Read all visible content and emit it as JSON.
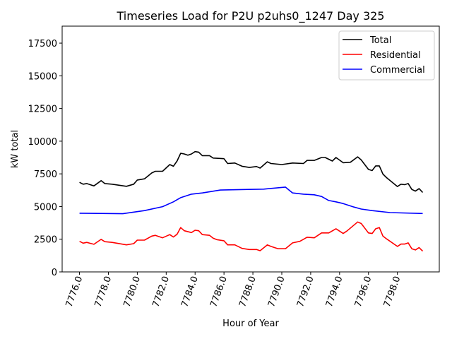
{
  "chart_data": {
    "type": "line",
    "title": "Timeseries Load for P2U p2uhs0_1247  Day 325",
    "xlabel": "Hour of Year",
    "ylabel": "kW total",
    "xlim": [
      7774.8,
      7800.9
    ],
    "ylim": [
      0,
      18800
    ],
    "xticks": [
      7776,
      7778,
      7780,
      7782,
      7784,
      7786,
      7788,
      7790,
      7792,
      7794,
      7796,
      7798
    ],
    "xtick_labels": [
      "7776.0",
      "7778.0",
      "7780.0",
      "7782.0",
      "7784.0",
      "7786.0",
      "7788.0",
      "7790.0",
      "7792.0",
      "7794.0",
      "7796.0",
      "7798.0"
    ],
    "yticks": [
      0,
      2500,
      5000,
      7500,
      10000,
      12500,
      15000,
      17500
    ],
    "ytick_labels": [
      "0",
      "2500",
      "5000",
      "7500",
      "10000",
      "12500",
      "15000",
      "17500"
    ],
    "grid": false,
    "legend_position": "top-right",
    "series": [
      {
        "name": "Total",
        "color": "#000000",
        "points": [
          [
            7776.0,
            6850
          ],
          [
            7776.25,
            6710
          ],
          [
            7776.5,
            6760
          ],
          [
            7777.0,
            6580
          ],
          [
            7777.5,
            6980
          ],
          [
            7777.75,
            6760
          ],
          [
            7778.25,
            6710
          ],
          [
            7779.25,
            6550
          ],
          [
            7779.75,
            6710
          ],
          [
            7780.0,
            7030
          ],
          [
            7780.5,
            7120
          ],
          [
            7781.0,
            7570
          ],
          [
            7781.25,
            7700
          ],
          [
            7781.75,
            7700
          ],
          [
            7782.25,
            8210
          ],
          [
            7782.5,
            8080
          ],
          [
            7782.75,
            8480
          ],
          [
            7783.0,
            9070
          ],
          [
            7783.25,
            9020
          ],
          [
            7783.5,
            8930
          ],
          [
            7783.75,
            9020
          ],
          [
            7784.0,
            9200
          ],
          [
            7784.25,
            9160
          ],
          [
            7784.5,
            8890
          ],
          [
            7785.0,
            8890
          ],
          [
            7785.25,
            8710
          ],
          [
            7785.5,
            8690
          ],
          [
            7786.0,
            8660
          ],
          [
            7786.25,
            8290
          ],
          [
            7786.75,
            8330
          ],
          [
            7787.25,
            8080
          ],
          [
            7787.75,
            7990
          ],
          [
            7788.25,
            8060
          ],
          [
            7788.5,
            7940
          ],
          [
            7789.0,
            8420
          ],
          [
            7789.25,
            8290
          ],
          [
            7790.0,
            8210
          ],
          [
            7790.75,
            8330
          ],
          [
            7791.5,
            8290
          ],
          [
            7791.75,
            8530
          ],
          [
            7792.25,
            8530
          ],
          [
            7792.75,
            8750
          ],
          [
            7793.0,
            8750
          ],
          [
            7793.5,
            8480
          ],
          [
            7793.75,
            8750
          ],
          [
            7794.25,
            8350
          ],
          [
            7794.75,
            8390
          ],
          [
            7795.25,
            8800
          ],
          [
            7795.5,
            8560
          ],
          [
            7796.0,
            7840
          ],
          [
            7796.25,
            7750
          ],
          [
            7796.5,
            8110
          ],
          [
            7796.75,
            8110
          ],
          [
            7797.0,
            7480
          ],
          [
            7797.25,
            7210
          ],
          [
            7798.0,
            6530
          ],
          [
            7798.25,
            6710
          ],
          [
            7798.5,
            6670
          ],
          [
            7798.75,
            6760
          ],
          [
            7799.0,
            6310
          ],
          [
            7799.25,
            6180
          ],
          [
            7799.5,
            6370
          ],
          [
            7799.75,
            6080
          ]
        ]
      },
      {
        "name": "Residential",
        "color": "#ff0000",
        "points": [
          [
            7776.0,
            2340
          ],
          [
            7776.25,
            2200
          ],
          [
            7776.5,
            2260
          ],
          [
            7777.0,
            2110
          ],
          [
            7777.5,
            2490
          ],
          [
            7777.75,
            2310
          ],
          [
            7778.25,
            2260
          ],
          [
            7779.25,
            2070
          ],
          [
            7779.75,
            2160
          ],
          [
            7780.0,
            2430
          ],
          [
            7780.5,
            2430
          ],
          [
            7781.0,
            2740
          ],
          [
            7781.25,
            2800
          ],
          [
            7781.75,
            2610
          ],
          [
            7782.25,
            2850
          ],
          [
            7782.5,
            2670
          ],
          [
            7782.75,
            2880
          ],
          [
            7783.0,
            3390
          ],
          [
            7783.25,
            3150
          ],
          [
            7783.75,
            3010
          ],
          [
            7784.0,
            3190
          ],
          [
            7784.25,
            3150
          ],
          [
            7784.5,
            2850
          ],
          [
            7785.0,
            2800
          ],
          [
            7785.25,
            2580
          ],
          [
            7785.5,
            2470
          ],
          [
            7786.0,
            2380
          ],
          [
            7786.25,
            2070
          ],
          [
            7786.75,
            2070
          ],
          [
            7787.25,
            1800
          ],
          [
            7787.75,
            1710
          ],
          [
            7788.25,
            1710
          ],
          [
            7788.5,
            1620
          ],
          [
            7789.0,
            2070
          ],
          [
            7789.25,
            1950
          ],
          [
            7789.75,
            1770
          ],
          [
            7790.25,
            1770
          ],
          [
            7790.75,
            2220
          ],
          [
            7791.25,
            2340
          ],
          [
            7791.75,
            2650
          ],
          [
            7792.25,
            2610
          ],
          [
            7792.75,
            2980
          ],
          [
            7793.25,
            2980
          ],
          [
            7793.75,
            3300
          ],
          [
            7794.25,
            2940
          ],
          [
            7794.5,
            3120
          ],
          [
            7795.25,
            3820
          ],
          [
            7795.5,
            3700
          ],
          [
            7796.0,
            2980
          ],
          [
            7796.25,
            2940
          ],
          [
            7796.5,
            3300
          ],
          [
            7796.75,
            3390
          ],
          [
            7797.0,
            2740
          ],
          [
            7797.25,
            2530
          ],
          [
            7798.0,
            1950
          ],
          [
            7798.25,
            2130
          ],
          [
            7798.5,
            2130
          ],
          [
            7798.75,
            2220
          ],
          [
            7799.0,
            1770
          ],
          [
            7799.25,
            1680
          ],
          [
            7799.5,
            1860
          ],
          [
            7799.75,
            1590
          ]
        ]
      },
      {
        "name": "Commercial",
        "color": "#0000ff",
        "points": [
          [
            7776.0,
            4490
          ],
          [
            7779.0,
            4450
          ],
          [
            7780.5,
            4690
          ],
          [
            7781.75,
            4990
          ],
          [
            7782.5,
            5360
          ],
          [
            7783.0,
            5680
          ],
          [
            7783.75,
            5950
          ],
          [
            7784.5,
            6040
          ],
          [
            7785.75,
            6260
          ],
          [
            7787.75,
            6310
          ],
          [
            7788.75,
            6330
          ],
          [
            7790.25,
            6490
          ],
          [
            7790.75,
            6040
          ],
          [
            7791.5,
            5950
          ],
          [
            7792.25,
            5900
          ],
          [
            7792.75,
            5770
          ],
          [
            7793.25,
            5460
          ],
          [
            7793.75,
            5360
          ],
          [
            7794.25,
            5230
          ],
          [
            7795.0,
            4960
          ],
          [
            7795.5,
            4810
          ],
          [
            7796.25,
            4690
          ],
          [
            7797.5,
            4540
          ],
          [
            7799.75,
            4470
          ]
        ]
      }
    ]
  }
}
